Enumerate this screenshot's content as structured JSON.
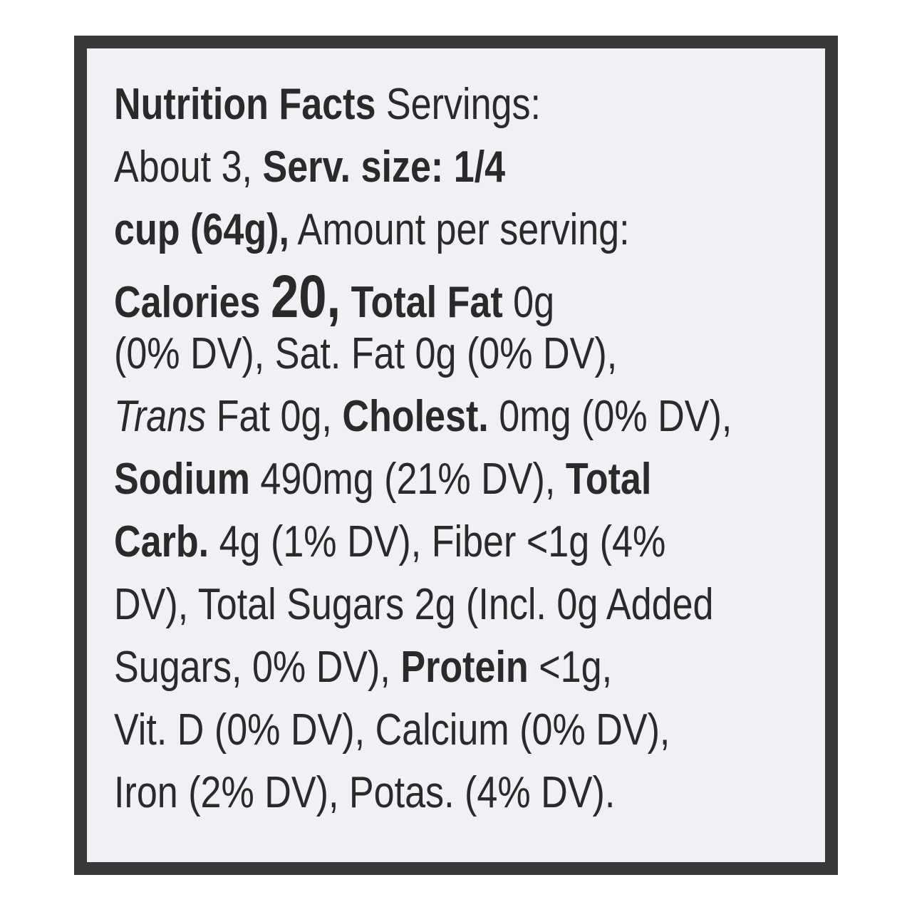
{
  "label": {
    "lines": [
      [
        "Nutrition Facts",
        " Servings:"
      ],
      [
        "About 3, ",
        "Serv. size: 1/4"
      ],
      [
        "cup (64g),",
        " Amount per serving:"
      ],
      [
        "Calories ",
        "20,",
        " Total Fat",
        " 0g"
      ],
      [
        "(0% DV), Sat. Fat 0g (0% DV),"
      ],
      [
        "Trans",
        " Fat 0g, ",
        "Cholest.",
        " 0mg (0% DV),"
      ],
      [
        "Sodium",
        " 490mg (21% DV), ",
        "Total"
      ],
      [
        "Carb.",
        " 4g (1% DV), Fiber <1g (4%"
      ],
      [
        "DV), Total Sugars 2g (Incl. 0g Added"
      ],
      [
        "Sugars, 0% DV), ",
        "Protein",
        " <1g,"
      ],
      [
        "Vit. D (0% DV), Calcium (0% DV),"
      ],
      [
        "Iron (2% DV), Potas. (4% DV)."
      ]
    ]
  }
}
